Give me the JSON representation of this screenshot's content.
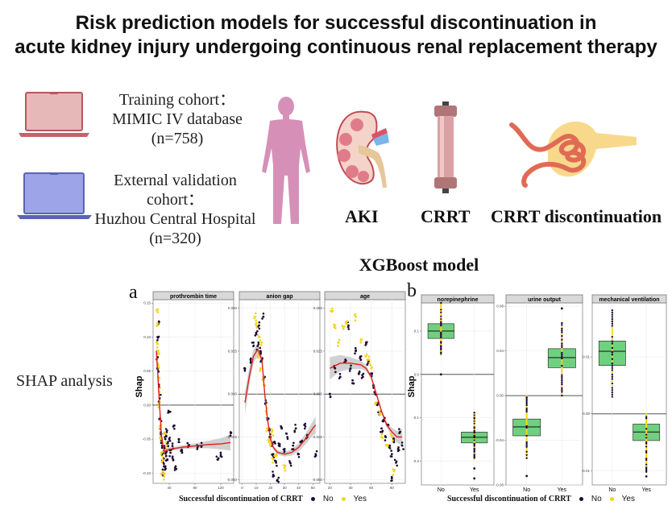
{
  "title": {
    "line1": "Risk prediction models for successful discontinuation in",
    "line2": "acute kidney injury undergoing continuous renal replacement therapy"
  },
  "cohorts": [
    {
      "label": "Training cohort：",
      "source": "MIMIC IV database",
      "n": "(n=758)",
      "icon": "laptop-icon",
      "color": "#d99a9a"
    },
    {
      "label": "External validation cohort：",
      "source": "Huzhou Central Hospital",
      "n": "(n=320)",
      "icon": "laptop-icon",
      "color": "#8c94d6"
    }
  ],
  "illustrations": [
    {
      "icon": "human-body-icon",
      "label": ""
    },
    {
      "icon": "kidney-icon",
      "label": "AKI"
    },
    {
      "icon": "dialysis-filter-icon",
      "label": "CRRT"
    },
    {
      "icon": "nephron-glomerulus-icon",
      "label": "CRRT discontinuation"
    }
  ],
  "section_title": "XGBoost model",
  "shap_label": "SHAP analysis",
  "panel_a_letter": "a",
  "panel_b_letter": "b",
  "legend": {
    "title": "Successful discontinuation of CRRT",
    "no": "No",
    "yes": "Yes",
    "no_color": "#1e0a33",
    "yes_color": "#f5d31a"
  },
  "colors": {
    "smooth_line": "#e02020",
    "ci_band": "#bdbdbd",
    "box_fill": "#6fd07f",
    "strip_bg": "#d9d9d9"
  },
  "chart_data": [
    {
      "type": "scatter",
      "panel": "a",
      "title": "prothrombin time",
      "xlabel": "Successful discontinuation of CRRT",
      "ylabel": "Shap",
      "xlim": [
        15,
        140
      ],
      "ylim": [
        -0.115,
        0.155
      ],
      "xticks": [
        40,
        80,
        120
      ],
      "yticks": [
        -0.1,
        -0.05,
        0.0,
        0.05,
        0.1,
        0.15
      ],
      "ytick_labels": [
        "-0.10",
        "-0.05",
        "0.00",
        "0.05",
        "0.10",
        "0.15"
      ],
      "smooth": {
        "x": [
          20,
          22,
          25,
          28,
          32,
          40,
          60,
          80,
          100,
          120,
          135
        ],
        "y": [
          0.08,
          0.05,
          0.0,
          -0.045,
          -0.068,
          -0.065,
          -0.062,
          -0.06,
          -0.058,
          -0.057,
          -0.055
        ]
      },
      "series": [
        {
          "name": "No",
          "points": [
            [
              22,
              0.07
            ],
            [
              23,
              0.05
            ],
            [
              24,
              0.03
            ],
            [
              25,
              0.01
            ],
            [
              26,
              -0.02
            ],
            [
              27,
              -0.04
            ],
            [
              28,
              -0.05
            ],
            [
              29,
              -0.06
            ],
            [
              30,
              -0.07
            ],
            [
              31,
              -0.08
            ],
            [
              32,
              -0.09
            ],
            [
              33,
              -0.06
            ],
            [
              34,
              -0.05
            ],
            [
              35,
              -0.07
            ],
            [
              36,
              -0.04
            ],
            [
              37,
              -0.08
            ],
            [
              38,
              -0.06
            ],
            [
              40,
              -0.05
            ],
            [
              42,
              -0.07
            ],
            [
              45,
              -0.06
            ],
            [
              48,
              -0.03
            ],
            [
              50,
              -0.09
            ],
            [
              55,
              -0.05
            ],
            [
              60,
              -0.07
            ],
            [
              70,
              -0.06
            ],
            [
              85,
              -0.06
            ],
            [
              90,
              -0.06
            ],
            [
              115,
              -0.08
            ],
            [
              120,
              -0.075
            ],
            [
              135,
              -0.045
            ],
            [
              22,
              0.1
            ],
            [
              23,
              0.12
            ],
            [
              30,
              -0.1
            ],
            [
              34,
              -0.09
            ],
            [
              40,
              -0.01
            ],
            [
              46,
              -0.08
            ]
          ]
        },
        {
          "name": "Yes",
          "points": [
            [
              21,
              0.14
            ],
            [
              22,
              0.12
            ],
            [
              22,
              0.09
            ],
            [
              23,
              0.08
            ],
            [
              23,
              0.06
            ],
            [
              24,
              0.04
            ],
            [
              24,
              0.02
            ],
            [
              25,
              0.0
            ],
            [
              26,
              -0.03
            ],
            [
              27,
              -0.05
            ],
            [
              28,
              -0.07
            ],
            [
              29,
              -0.1
            ],
            [
              30,
              -0.08
            ],
            [
              32,
              -0.105
            ],
            [
              33,
              -0.04
            ],
            [
              35,
              -0.06
            ]
          ]
        }
      ]
    },
    {
      "type": "scatter",
      "panel": "a",
      "title": "anion gap",
      "ylabel": "Shap",
      "xlim": [
        -2,
        55
      ],
      "ylim": [
        -0.052,
        0.055
      ],
      "xticks": [
        0,
        10,
        20,
        30,
        40,
        50
      ],
      "yticks": [
        -0.05,
        -0.025,
        0.0,
        0.025,
        0.05
      ],
      "ytick_labels": [
        "-0.050",
        "-0.025",
        "0.000",
        "0.025",
        "0.050"
      ],
      "smooth": {
        "x": [
          2,
          5,
          8,
          11,
          14,
          16,
          18,
          20,
          22,
          25,
          30,
          35,
          40,
          45,
          50,
          52
        ],
        "y": [
          -0.005,
          0.01,
          0.022,
          0.026,
          0.02,
          0.0,
          -0.015,
          -0.026,
          -0.031,
          -0.034,
          -0.035,
          -0.034,
          -0.031,
          -0.026,
          -0.02,
          -0.018
        ]
      },
      "series": [
        {
          "name": "No",
          "points": [
            [
              2,
              0.015
            ],
            [
              6,
              0.02
            ],
            [
              8,
              0.03
            ],
            [
              10,
              0.035
            ],
            [
              11,
              0.028
            ],
            [
              12,
              0.04
            ],
            [
              13,
              0.025
            ],
            [
              14,
              0.02
            ],
            [
              15,
              0.045
            ],
            [
              16,
              0.01
            ],
            [
              17,
              -0.005
            ],
            [
              18,
              -0.015
            ],
            [
              19,
              -0.02
            ],
            [
              20,
              -0.025
            ],
            [
              21,
              -0.03
            ],
            [
              22,
              -0.035
            ],
            [
              23,
              -0.028
            ],
            [
              24,
              -0.04
            ],
            [
              25,
              -0.05
            ],
            [
              26,
              -0.03
            ],
            [
              28,
              -0.02
            ],
            [
              30,
              -0.032
            ],
            [
              32,
              -0.025
            ],
            [
              34,
              -0.04
            ],
            [
              36,
              -0.03
            ],
            [
              38,
              -0.02
            ],
            [
              40,
              -0.035
            ],
            [
              42,
              -0.028
            ],
            [
              44,
              -0.018
            ],
            [
              46,
              -0.025
            ],
            [
              52,
              -0.035
            ],
            [
              22,
              -0.047
            ]
          ]
        },
        {
          "name": "Yes",
          "points": [
            [
              9,
              0.045
            ],
            [
              10,
              0.04
            ],
            [
              11,
              0.022
            ],
            [
              12,
              0.033
            ],
            [
              13,
              0.015
            ],
            [
              14,
              0.03
            ],
            [
              15,
              0.01
            ],
            [
              16,
              0.005
            ],
            [
              17,
              -0.01
            ],
            [
              18,
              -0.02
            ],
            [
              19,
              -0.028
            ],
            [
              20,
              -0.03
            ],
            [
              21,
              -0.022
            ],
            [
              22,
              -0.038
            ],
            [
              24,
              -0.035
            ],
            [
              30,
              -0.043
            ]
          ]
        }
      ]
    },
    {
      "type": "scatter",
      "panel": "a",
      "title": "age",
      "ylabel": "Shap",
      "xlim": [
        15,
        93
      ],
      "ylim": [
        -0.052,
        0.055
      ],
      "xticks": [
        20,
        40,
        60,
        80
      ],
      "yticks": [
        -0.05,
        -0.025,
        0.0,
        0.025,
        0.05
      ],
      "ytick_labels": [
        "-0.050",
        "-0.025",
        "0.000",
        "0.025",
        "0.050"
      ],
      "smooth": {
        "x": [
          20,
          30,
          40,
          50,
          55,
          60,
          65,
          70,
          75,
          80,
          85,
          90
        ],
        "y": [
          0.015,
          0.018,
          0.018,
          0.017,
          0.015,
          0.01,
          0.0,
          -0.01,
          -0.018,
          -0.022,
          -0.025,
          -0.025
        ]
      },
      "series": [
        {
          "name": "No",
          "points": [
            [
              20,
              0.0
            ],
            [
              25,
              0.015
            ],
            [
              30,
              0.01
            ],
            [
              35,
              0.02
            ],
            [
              38,
              0.04
            ],
            [
              40,
              0.015
            ],
            [
              42,
              0.008
            ],
            [
              45,
              0.025
            ],
            [
              48,
              0.012
            ],
            [
              50,
              0.02
            ],
            [
              52,
              0.01
            ],
            [
              55,
              0.03
            ],
            [
              57,
              0.018
            ],
            [
              60,
              0.012
            ],
            [
              62,
              0.005
            ],
            [
              64,
              0.0
            ],
            [
              66,
              -0.005
            ],
            [
              68,
              -0.012
            ],
            [
              70,
              -0.02
            ],
            [
              72,
              -0.015
            ],
            [
              74,
              -0.025
            ],
            [
              76,
              -0.018
            ],
            [
              78,
              -0.03
            ],
            [
              80,
              -0.035
            ],
            [
              82,
              -0.028
            ],
            [
              84,
              -0.04
            ],
            [
              86,
              -0.032
            ],
            [
              88,
              -0.022
            ],
            [
              90,
              -0.03
            ],
            [
              80,
              -0.049
            ]
          ]
        },
        {
          "name": "Yes",
          "points": [
            [
              22,
              0.048
            ],
            [
              25,
              0.04
            ],
            [
              28,
              0.03
            ],
            [
              33,
              0.038
            ],
            [
              36,
              0.042
            ],
            [
              45,
              0.045
            ],
            [
              50,
              0.03
            ],
            [
              55,
              0.022
            ],
            [
              58,
              0.02
            ],
            [
              60,
              0.015
            ],
            [
              65,
              -0.005
            ],
            [
              68,
              -0.01
            ],
            [
              70,
              -0.025
            ],
            [
              75,
              -0.03
            ],
            [
              80,
              -0.025
            ],
            [
              82,
              -0.045
            ]
          ]
        }
      ]
    },
    {
      "type": "box",
      "panel": "b",
      "title": "norepinephrine",
      "ylabel": "Shap",
      "categories": [
        "No",
        "Yes"
      ],
      "ylim": [
        -0.255,
        0.165
      ],
      "yticks": [
        -0.2,
        -0.1,
        0.0,
        0.1
      ],
      "ytick_labels": [
        "-0.2",
        "-0.1",
        "0.0",
        "0.1"
      ],
      "boxes": [
        {
          "category": "No",
          "q1": 0.083,
          "median": 0.1,
          "q3": 0.117,
          "whisker_low": 0.045,
          "whisker_high": 0.165,
          "outliers": [
            0.0
          ]
        },
        {
          "category": "Yes",
          "q1": -0.158,
          "median": -0.145,
          "q3": -0.133,
          "whisker_low": -0.195,
          "whisker_high": -0.088,
          "outliers": [
            -0.217,
            -0.24
          ]
        }
      ]
    },
    {
      "type": "box",
      "panel": "b",
      "title": "urine output",
      "ylabel": "Shap",
      "categories": [
        "No",
        "Yes"
      ],
      "ylim": [
        -0.08,
        0.083
      ],
      "yticks": [
        -0.08,
        -0.04,
        0.0,
        0.04,
        0.08
      ],
      "ytick_labels": [
        "-0.08",
        "-0.04",
        "0.00",
        "0.04",
        "0.08"
      ],
      "boxes": [
        {
          "category": "No",
          "q1": -0.036,
          "median": -0.028,
          "q3": -0.021,
          "whisker_low": -0.056,
          "whisker_high": 0.0,
          "outliers": [
            -0.072
          ]
        },
        {
          "category": "Yes",
          "q1": 0.025,
          "median": 0.034,
          "q3": 0.042,
          "whisker_low": 0.0,
          "whisker_high": 0.065,
          "outliers": [
            0.078
          ]
        }
      ]
    },
    {
      "type": "box",
      "panel": "b",
      "title": "mechanical ventilation",
      "ylabel": "Shap",
      "categories": [
        "No",
        "Yes"
      ],
      "ylim": [
        -0.0125,
        0.0195
      ],
      "yticks": [
        -0.01,
        0.0,
        0.01
      ],
      "ytick_labels": [
        "-0.01",
        "0.00",
        "0.01"
      ],
      "boxes": [
        {
          "category": "No",
          "q1": 0.0085,
          "median": 0.011,
          "q3": 0.0128,
          "whisker_low": 0.003,
          "whisker_high": 0.0182,
          "outliers": []
        },
        {
          "category": "Yes",
          "q1": -0.0047,
          "median": -0.0032,
          "q3": -0.0018,
          "whisker_low": -0.0102,
          "whisker_high": 0.0,
          "outliers": [
            -0.011
          ]
        }
      ]
    }
  ]
}
